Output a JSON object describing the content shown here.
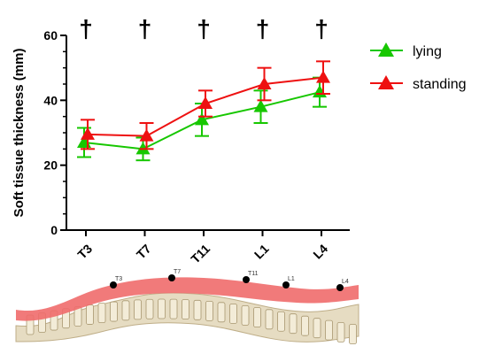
{
  "chart_data": {
    "type": "line",
    "title": "",
    "xlabel": "",
    "ylabel": "Soft tissue thickness (mm)",
    "ylim": [
      0,
      60
    ],
    "yticks": [
      0,
      20,
      40,
      60
    ],
    "categories": [
      "T3",
      "T7",
      "T11",
      "L1",
      "L4"
    ],
    "significance_marker": "†",
    "significant_categories": [
      "T3",
      "T7",
      "T11",
      "L1",
      "L4"
    ],
    "legend_position": "right",
    "series": [
      {
        "name": "lying",
        "color": "#17c700",
        "marker": "triangle-up",
        "values": [
          27,
          25,
          34,
          38,
          42.5
        ],
        "error": [
          4.5,
          3.5,
          5,
          5,
          4.5
        ]
      },
      {
        "name": "standing",
        "color": "#ee1111",
        "marker": "triangle-up",
        "values": [
          29.5,
          29,
          39,
          45,
          47
        ],
        "error": [
          4.5,
          4,
          4,
          5,
          5
        ]
      }
    ],
    "spine_labels": [
      "T3",
      "T7",
      "T11",
      "L1",
      "L4"
    ]
  }
}
